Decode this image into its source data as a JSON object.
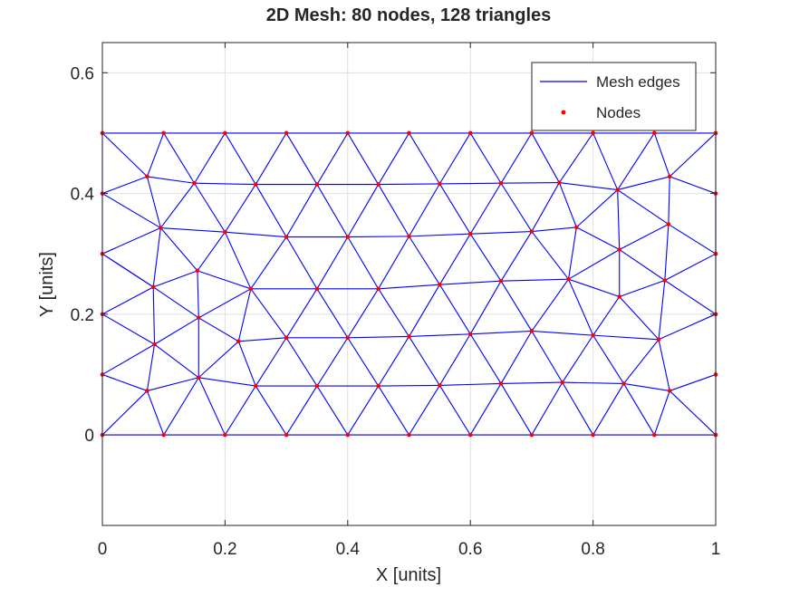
{
  "chart_data": {
    "type": "scatter",
    "title": "2D Mesh: 80 nodes, 128 triangles",
    "xlabel": "X [units]",
    "ylabel": "Y [units]",
    "xlim": [
      0,
      1
    ],
    "ylim": [
      -0.15,
      0.65
    ],
    "xticks": [
      0,
      0.2,
      0.4,
      0.6,
      0.8,
      1
    ],
    "xtick_labels": [
      "0",
      "0.2",
      "0.4",
      "0.6",
      "0.8",
      "1"
    ],
    "yticks": [
      0,
      0.2,
      0.4,
      0.6
    ],
    "ytick_labels": [
      "0",
      "0.2",
      "0.4",
      "0.6"
    ],
    "grid": true,
    "legend": {
      "placement": "top-right",
      "entries": [
        {
          "label": "Mesh edges",
          "style": "line",
          "color": "#0000ff"
        },
        {
          "label": "Nodes",
          "style": "marker",
          "color": "#ff0000"
        }
      ]
    },
    "series": [
      {
        "name": "Nodes",
        "color": "#ff0000",
        "points": [
          [
            0,
            0
          ],
          [
            0.1,
            0
          ],
          [
            0.2,
            0
          ],
          [
            0.3,
            0
          ],
          [
            0.4,
            0
          ],
          [
            0.5,
            0
          ],
          [
            0.6,
            0
          ],
          [
            0.7,
            0
          ],
          [
            0.8,
            0
          ],
          [
            0.9,
            0
          ],
          [
            1,
            0
          ],
          [
            0,
            0.5
          ],
          [
            0.1,
            0.5
          ],
          [
            0.2,
            0.5
          ],
          [
            0.3,
            0.5
          ],
          [
            0.4,
            0.5
          ],
          [
            0.5,
            0.5
          ],
          [
            0.6,
            0.5
          ],
          [
            0.7,
            0.5
          ],
          [
            0.8,
            0.5
          ],
          [
            0.9,
            0.5
          ],
          [
            1,
            0.5
          ],
          [
            0,
            0.1
          ],
          [
            0,
            0.2
          ],
          [
            0,
            0.3
          ],
          [
            0,
            0.4
          ],
          [
            1,
            0.1
          ],
          [
            1,
            0.2
          ],
          [
            1,
            0.3
          ],
          [
            1,
            0.4
          ],
          [
            0.073,
            0.073
          ],
          [
            0.157,
            0.095
          ],
          [
            0.25,
            0.081
          ],
          [
            0.35,
            0.081
          ],
          [
            0.45,
            0.081
          ],
          [
            0.55,
            0.082
          ],
          [
            0.65,
            0.085
          ],
          [
            0.75,
            0.087
          ],
          [
            0.85,
            0.085
          ],
          [
            0.925,
            0.073
          ],
          [
            0.085,
            0.15
          ],
          [
            0.222,
            0.155
          ],
          [
            0.3,
            0.161
          ],
          [
            0.4,
            0.161
          ],
          [
            0.5,
            0.163
          ],
          [
            0.6,
            0.167
          ],
          [
            0.7,
            0.172
          ],
          [
            0.8,
            0.165
          ],
          [
            0.907,
            0.158
          ],
          [
            0.157,
            0.194
          ],
          [
            0.083,
            0.245
          ],
          [
            0.155,
            0.272
          ],
          [
            0.242,
            0.242
          ],
          [
            0.35,
            0.242
          ],
          [
            0.45,
            0.242
          ],
          [
            0.55,
            0.249
          ],
          [
            0.65,
            0.255
          ],
          [
            0.76,
            0.258
          ],
          [
            0.843,
            0.229
          ],
          [
            0.917,
            0.256
          ],
          [
            0.095,
            0.343
          ],
          [
            0.2,
            0.336
          ],
          [
            0.3,
            0.328
          ],
          [
            0.4,
            0.328
          ],
          [
            0.5,
            0.329
          ],
          [
            0.6,
            0.333
          ],
          [
            0.7,
            0.337
          ],
          [
            0.773,
            0.344
          ],
          [
            0.843,
            0.307
          ],
          [
            0.923,
            0.349
          ],
          [
            0.073,
            0.428
          ],
          [
            0.15,
            0.417
          ],
          [
            0.25,
            0.415
          ],
          [
            0.35,
            0.415
          ],
          [
            0.45,
            0.415
          ],
          [
            0.55,
            0.416
          ],
          [
            0.65,
            0.417
          ],
          [
            0.745,
            0.418
          ],
          [
            0.84,
            0.406
          ],
          [
            0.925,
            0.428
          ]
        ]
      }
    ],
    "edges": [
      [
        0,
        1
      ],
      [
        1,
        2
      ],
      [
        2,
        3
      ],
      [
        3,
        4
      ],
      [
        4,
        5
      ],
      [
        5,
        6
      ],
      [
        6,
        7
      ],
      [
        7,
        8
      ],
      [
        8,
        9
      ],
      [
        9,
        10
      ],
      [
        11,
        12
      ],
      [
        12,
        13
      ],
      [
        13,
        14
      ],
      [
        14,
        15
      ],
      [
        15,
        16
      ],
      [
        16,
        17
      ],
      [
        17,
        18
      ],
      [
        18,
        19
      ],
      [
        19,
        20
      ],
      [
        20,
        21
      ],
      [
        0,
        22
      ],
      [
        22,
        23
      ],
      [
        23,
        24
      ],
      [
        24,
        25
      ],
      [
        25,
        11
      ],
      [
        10,
        26
      ],
      [
        26,
        27
      ],
      [
        27,
        28
      ],
      [
        28,
        29
      ],
      [
        29,
        21
      ],
      [
        30,
        31
      ],
      [
        31,
        32
      ],
      [
        32,
        33
      ],
      [
        33,
        34
      ],
      [
        34,
        35
      ],
      [
        35,
        36
      ],
      [
        36,
        37
      ],
      [
        37,
        38
      ],
      [
        38,
        39
      ],
      [
        39,
        26
      ],
      [
        22,
        30
      ],
      [
        40,
        49
      ],
      [
        49,
        41
      ],
      [
        41,
        42
      ],
      [
        42,
        43
      ],
      [
        43,
        44
      ],
      [
        44,
        45
      ],
      [
        45,
        46
      ],
      [
        46,
        47
      ],
      [
        47,
        48
      ],
      [
        48,
        27
      ],
      [
        23,
        40
      ],
      [
        50,
        51
      ],
      [
        51,
        52
      ],
      [
        52,
        53
      ],
      [
        53,
        54
      ],
      [
        54,
        55
      ],
      [
        55,
        56
      ],
      [
        56,
        57
      ],
      [
        57,
        58
      ],
      [
        58,
        59
      ],
      [
        59,
        27
      ],
      [
        24,
        50
      ],
      [
        60,
        61
      ],
      [
        61,
        62
      ],
      [
        62,
        63
      ],
      [
        63,
        64
      ],
      [
        64,
        65
      ],
      [
        65,
        66
      ],
      [
        66,
        67
      ],
      [
        67,
        68
      ],
      [
        68,
        69
      ],
      [
        69,
        28
      ],
      [
        24,
        60
      ],
      [
        70,
        71
      ],
      [
        71,
        72
      ],
      [
        72,
        73
      ],
      [
        73,
        74
      ],
      [
        74,
        75
      ],
      [
        75,
        76
      ],
      [
        76,
        77
      ],
      [
        77,
        78
      ],
      [
        78,
        79
      ],
      [
        79,
        29
      ],
      [
        25,
        70
      ],
      [
        0,
        30
      ],
      [
        30,
        1
      ],
      [
        1,
        31
      ],
      [
        31,
        2
      ],
      [
        2,
        32
      ],
      [
        32,
        3
      ],
      [
        3,
        33
      ],
      [
        33,
        4
      ],
      [
        4,
        34
      ],
      [
        34,
        5
      ],
      [
        5,
        35
      ],
      [
        35,
        6
      ],
      [
        6,
        36
      ],
      [
        36,
        7
      ],
      [
        7,
        37
      ],
      [
        37,
        8
      ],
      [
        8,
        38
      ],
      [
        38,
        9
      ],
      [
        9,
        39
      ],
      [
        39,
        10
      ],
      [
        22,
        40
      ],
      [
        30,
        40
      ],
      [
        31,
        40
      ],
      [
        31,
        49
      ],
      [
        31,
        41
      ],
      [
        32,
        41
      ],
      [
        32,
        42
      ],
      [
        33,
        42
      ],
      [
        33,
        43
      ],
      [
        34,
        43
      ],
      [
        34,
        44
      ],
      [
        35,
        44
      ],
      [
        35,
        45
      ],
      [
        36,
        45
      ],
      [
        36,
        46
      ],
      [
        37,
        46
      ],
      [
        37,
        47
      ],
      [
        38,
        47
      ],
      [
        38,
        48
      ],
      [
        39,
        48
      ],
      [
        23,
        50
      ],
      [
        40,
        50
      ],
      [
        49,
        50
      ],
      [
        49,
        51
      ],
      [
        49,
        52
      ],
      [
        41,
        52
      ],
      [
        42,
        52
      ],
      [
        42,
        53
      ],
      [
        43,
        53
      ],
      [
        43,
        54
      ],
      [
        44,
        54
      ],
      [
        44,
        55
      ],
      [
        45,
        55
      ],
      [
        45,
        56
      ],
      [
        46,
        56
      ],
      [
        46,
        57
      ],
      [
        47,
        57
      ],
      [
        47,
        58
      ],
      [
        48,
        58
      ],
      [
        48,
        59
      ],
      [
        24,
        50
      ],
      [
        50,
        60
      ],
      [
        51,
        60
      ],
      [
        51,
        61
      ],
      [
        52,
        61
      ],
      [
        52,
        62
      ],
      [
        53,
        62
      ],
      [
        53,
        63
      ],
      [
        54,
        63
      ],
      [
        54,
        64
      ],
      [
        55,
        64
      ],
      [
        55,
        65
      ],
      [
        56,
        65
      ],
      [
        56,
        66
      ],
      [
        57,
        66
      ],
      [
        57,
        67
      ],
      [
        57,
        68
      ],
      [
        58,
        68
      ],
      [
        59,
        68
      ],
      [
        59,
        69
      ],
      [
        59,
        28
      ],
      [
        25,
        60
      ],
      [
        60,
        70
      ],
      [
        61,
        71
      ],
      [
        61,
        72
      ],
      [
        62,
        72
      ],
      [
        62,
        73
      ],
      [
        63,
        73
      ],
      [
        63,
        74
      ],
      [
        64,
        74
      ],
      [
        64,
        75
      ],
      [
        65,
        75
      ],
      [
        65,
        76
      ],
      [
        66,
        76
      ],
      [
        66,
        77
      ],
      [
        67,
        77
      ],
      [
        67,
        78
      ],
      [
        68,
        78
      ],
      [
        69,
        78
      ],
      [
        69,
        79
      ],
      [
        28,
        29
      ],
      [
        11,
        70
      ],
      [
        12,
        70
      ],
      [
        12,
        71
      ],
      [
        13,
        71
      ],
      [
        13,
        72
      ],
      [
        14,
        72
      ],
      [
        14,
        73
      ],
      [
        15,
        73
      ],
      [
        15,
        74
      ],
      [
        16,
        74
      ],
      [
        16,
        75
      ],
      [
        17,
        75
      ],
      [
        17,
        76
      ],
      [
        18,
        76
      ],
      [
        18,
        77
      ],
      [
        19,
        77
      ],
      [
        19,
        78
      ],
      [
        20,
        78
      ],
      [
        20,
        79
      ],
      [
        21,
        79
      ],
      [
        60,
        71
      ]
    ]
  }
}
